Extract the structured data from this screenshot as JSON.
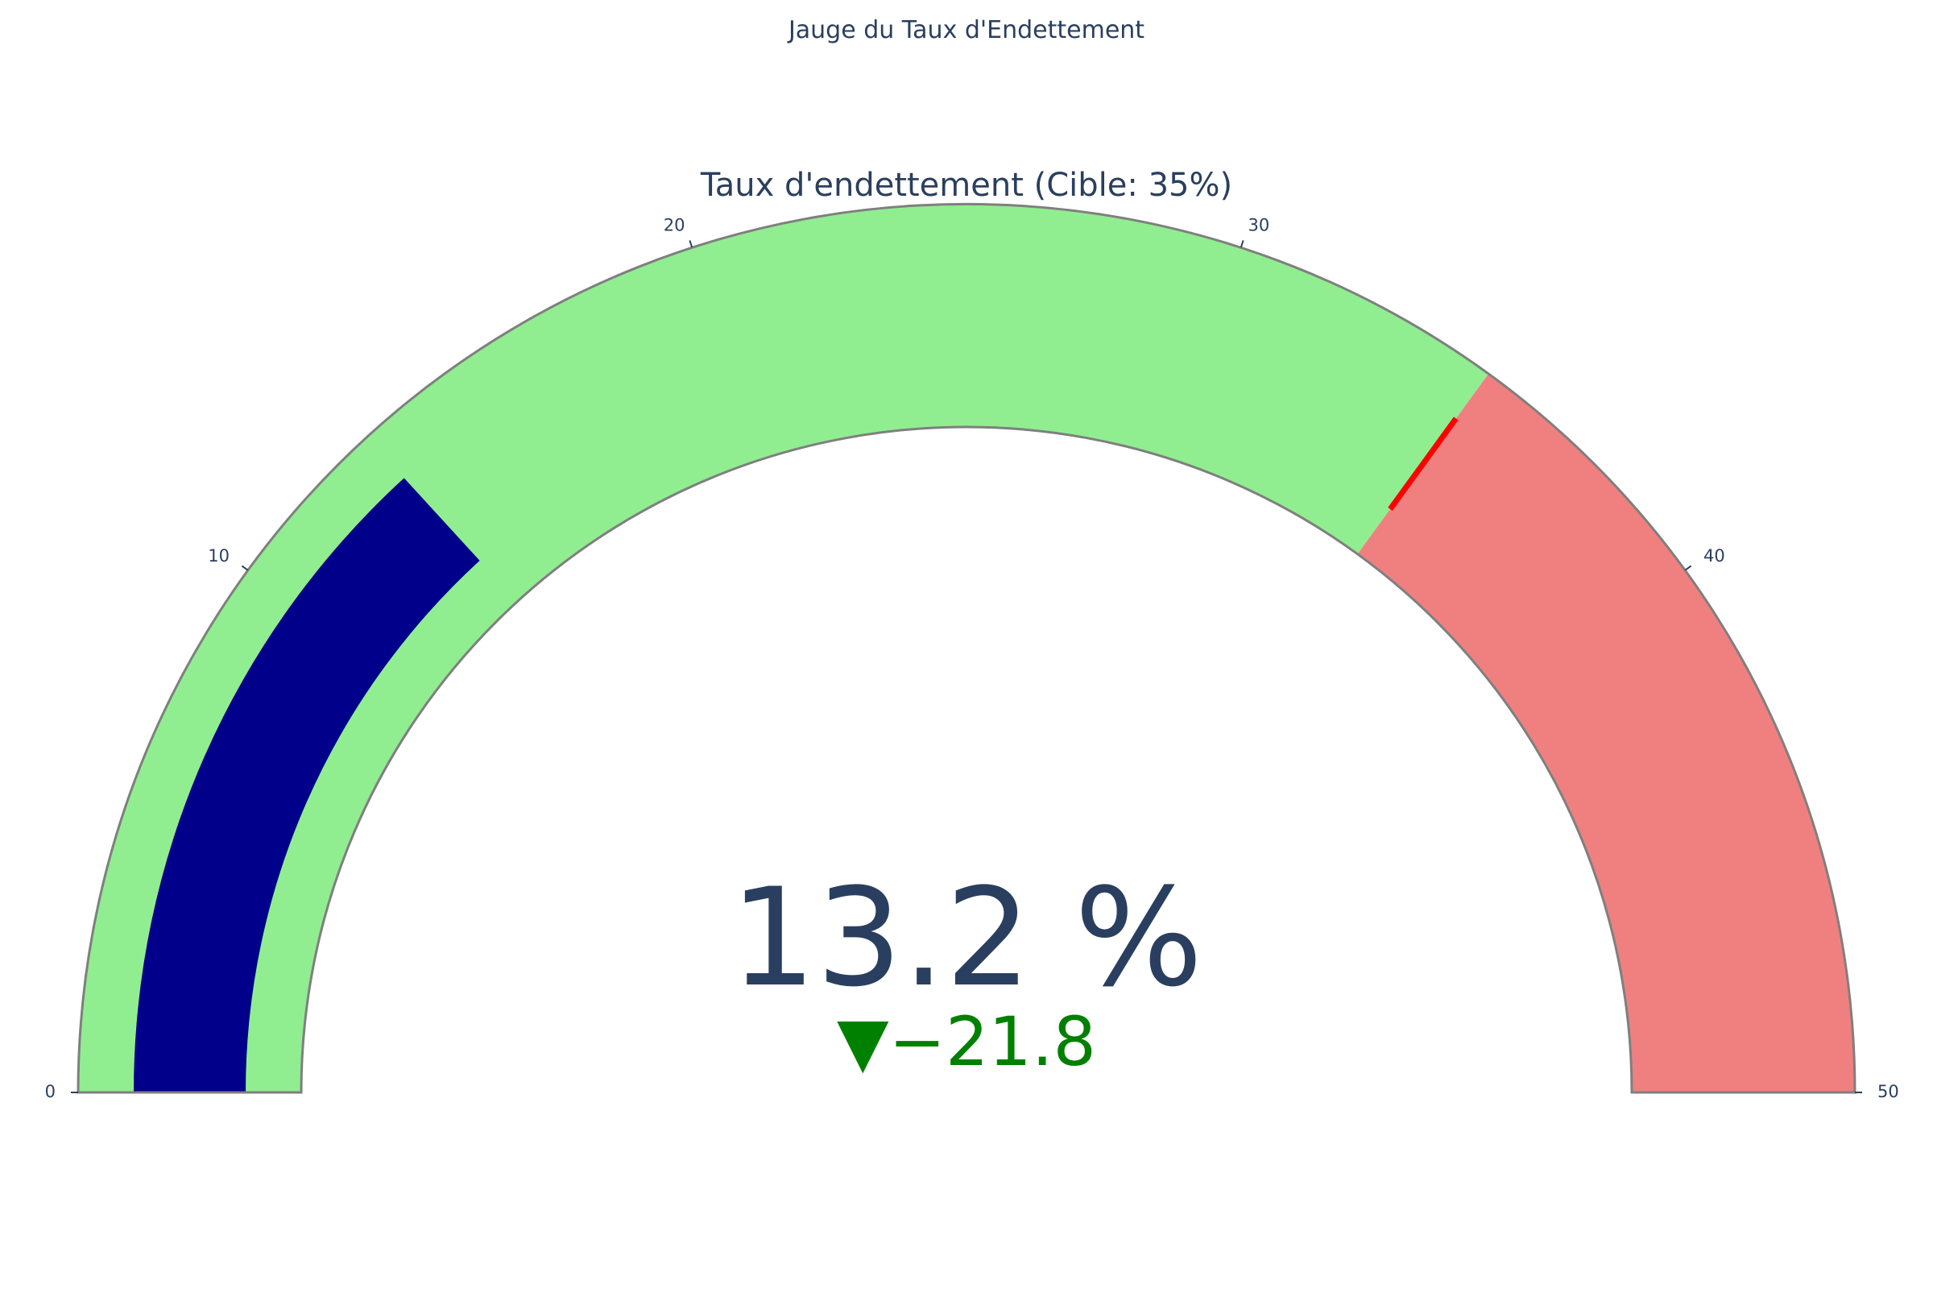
{
  "title": "Jauge du Taux d'Endettement",
  "chart_data": {
    "type": "gauge",
    "gauge_title": "Taux d'endettement (Cible: 35%)",
    "value": 13.2,
    "value_text": "13.2 %",
    "delta_text": "▼−21.8",
    "reference": 35,
    "threshold": 35,
    "range": [
      0,
      50
    ],
    "ticks": [
      0,
      10,
      20,
      30,
      40,
      50
    ],
    "tick_labels": [
      "0",
      "10",
      "20",
      "30",
      "40",
      "50"
    ],
    "steps": [
      {
        "range": [
          0,
          35
        ],
        "color": "#90ee90"
      },
      {
        "range": [
          35,
          50
        ],
        "color": "#f08080"
      }
    ],
    "bar_color": "#00008b",
    "threshold_color": "#ff0000",
    "delta_color": "#008000",
    "border_color": "#7f7f7f"
  }
}
